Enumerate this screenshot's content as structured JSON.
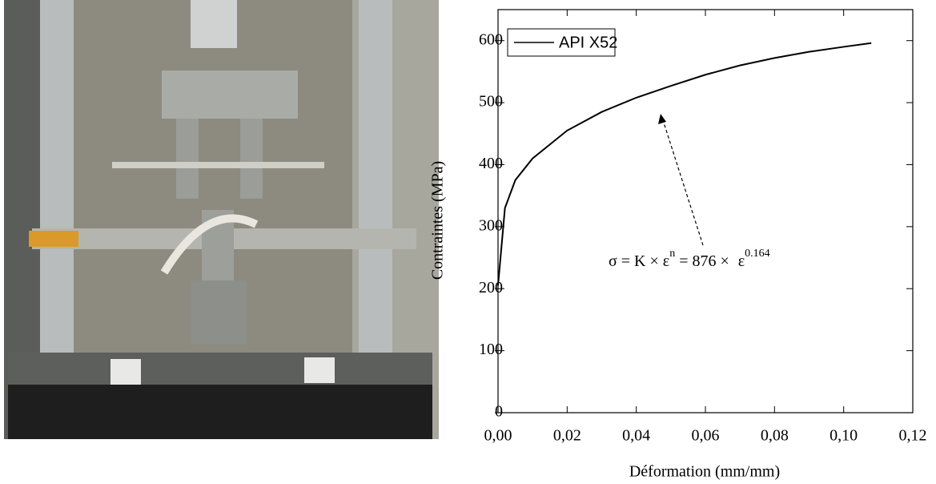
{
  "chart_data": {
    "type": "line",
    "x_label": "Déformation (mm/mm)",
    "y_label": "Contraintes (MPa)",
    "annotation": [
      "σ = K × ε",
      "n",
      " = 876 × ",
      "ε",
      "0.164"
    ],
    "xlim": [
      0,
      0.12
    ],
    "ylim": [
      0,
      650
    ],
    "xticks": [
      {
        "value": 0,
        "label": "0,00"
      },
      {
        "value": 0.02,
        "label": "0,02"
      },
      {
        "value": 0.04,
        "label": "0,04"
      },
      {
        "value": 0.06,
        "label": "0,06"
      },
      {
        "value": 0.08,
        "label": "0,08"
      },
      {
        "value": 0.1,
        "label": "0,10"
      },
      {
        "value": 0.12,
        "label": "0,12"
      }
    ],
    "yticks": [
      0,
      100,
      200,
      300,
      400,
      500,
      600
    ],
    "legend": "upper left",
    "x": [
      0,
      0.002,
      0.005,
      0.01,
      0.02,
      0.03,
      0.04,
      0.05,
      0.06,
      0.07,
      0.08,
      0.09,
      0.1,
      0.108
    ],
    "series": [
      {
        "name": "API X52",
        "color": "#000000",
        "values": [
          205,
          330,
          375,
          410,
          455,
          485,
          508,
          527,
          545,
          560,
          572,
          582,
          590,
          596
        ]
      }
    ]
  }
}
